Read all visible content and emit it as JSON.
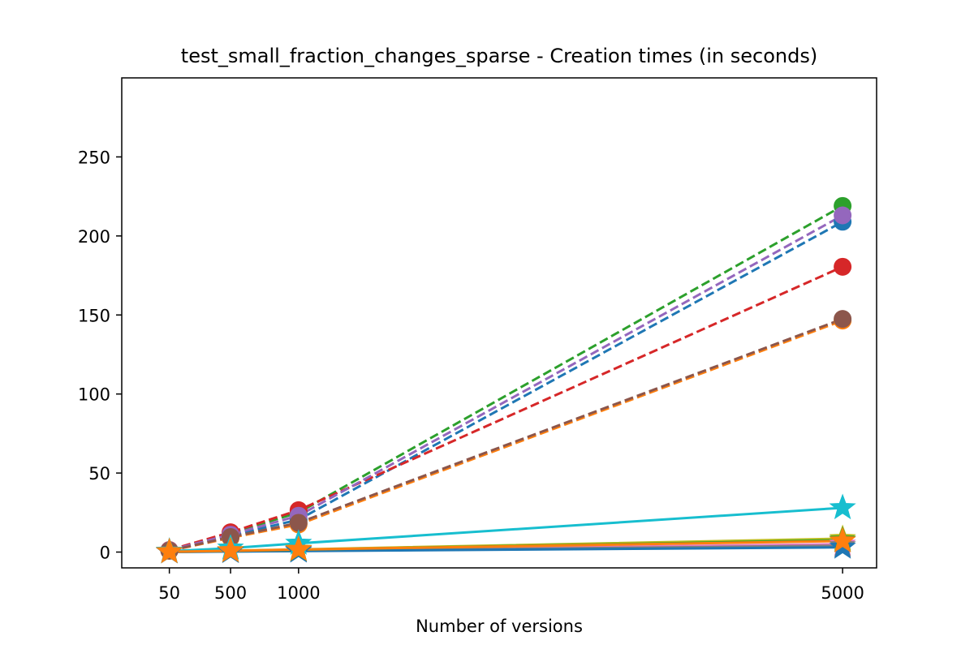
{
  "chart_data": {
    "type": "line",
    "title": "test_small_fraction_changes_sparse - Creation times (in seconds)",
    "xlabel": "Number of versions",
    "ylabel": "",
    "x": [
      50,
      500,
      1000,
      5000
    ],
    "x_ticks": [
      "50",
      "500",
      "1000",
      "5000"
    ],
    "xlim": [
      -300,
      5250
    ],
    "ylim": [
      -10,
      300
    ],
    "y_ticks": [
      0,
      50,
      100,
      150,
      200,
      250
    ],
    "series": [
      {
        "name": "dashed-blue",
        "color": "#1f77b4",
        "style": "dashed",
        "marker": "circle",
        "values": [
          1.0,
          10.5,
          20.5,
          209
        ]
      },
      {
        "name": "dashed-orange",
        "color": "#ff7f0e",
        "style": "dashed",
        "marker": "circle",
        "values": [
          0.8,
          9.0,
          17.5,
          146.5
        ]
      },
      {
        "name": "dashed-green",
        "color": "#2ca02c",
        "style": "dashed",
        "marker": "circle",
        "values": [
          1.2,
          12.0,
          25.0,
          219
        ]
      },
      {
        "name": "dashed-red",
        "color": "#d62728",
        "style": "dashed",
        "marker": "circle",
        "values": [
          1.3,
          12.5,
          26.5,
          180.5
        ]
      },
      {
        "name": "dashed-purple",
        "color": "#9467bd",
        "style": "dashed",
        "marker": "circle",
        "values": [
          1.1,
          11.0,
          23.0,
          213
        ]
      },
      {
        "name": "dashed-brown",
        "color": "#8c564b",
        "style": "dashed",
        "marker": "circle",
        "values": [
          0.9,
          9.5,
          18.5,
          147.5
        ]
      },
      {
        "name": "solid-pink",
        "color": "#e377c2",
        "style": "solid",
        "marker": "star",
        "values": [
          0.1,
          0.5,
          1.0,
          5.0
        ]
      },
      {
        "name": "solid-gray",
        "color": "#7f7f7f",
        "style": "solid",
        "marker": "star",
        "values": [
          0.1,
          0.4,
          0.8,
          4.0
        ]
      },
      {
        "name": "solid-olive",
        "color": "#bcbd22",
        "style": "solid",
        "marker": "star",
        "values": [
          0.2,
          0.9,
          1.7,
          8.5
        ]
      },
      {
        "name": "solid-blue",
        "color": "#1f77b4",
        "style": "solid",
        "marker": "star",
        "values": [
          0.1,
          0.3,
          0.6,
          3.0
        ]
      },
      {
        "name": "solid-green",
        "color": "#2ca02c",
        "style": "solid",
        "marker": "star",
        "values": [
          0.2,
          0.8,
          1.5,
          7.5
        ]
      },
      {
        "name": "solid-cyan",
        "color": "#17becf",
        "style": "solid",
        "marker": "star",
        "values": [
          0.5,
          2.5,
          5.5,
          28.0
        ]
      },
      {
        "name": "solid-orange",
        "color": "#ff7f0e",
        "style": "solid",
        "marker": "star",
        "values": [
          0.2,
          0.8,
          1.6,
          7.0
        ]
      }
    ]
  }
}
